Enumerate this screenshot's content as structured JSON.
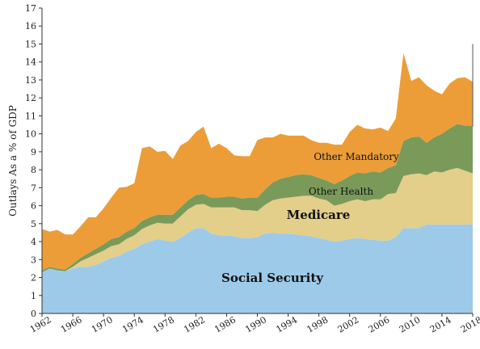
{
  "chart_data": {
    "type": "area",
    "stacked": true,
    "ylabel": "Outlays As a % of GDP",
    "xlabel": "",
    "xlim": [
      1962,
      2018
    ],
    "ylim": [
      0,
      17
    ],
    "x_ticks": [
      1962,
      1966,
      1970,
      1974,
      1978,
      1982,
      1986,
      1990,
      1994,
      1998,
      2002,
      2006,
      2010,
      2014,
      2018
    ],
    "y_ticks": [
      0,
      1,
      2,
      3,
      4,
      5,
      6,
      7,
      8,
      9,
      10,
      11,
      12,
      13,
      14,
      15,
      16,
      17
    ],
    "grid": false,
    "legend": "none",
    "x": [
      1962,
      1963,
      1964,
      1965,
      1966,
      1967,
      1968,
      1969,
      1970,
      1971,
      1972,
      1973,
      1974,
      1975,
      1976,
      1977,
      1978,
      1979,
      1980,
      1981,
      1982,
      1983,
      1984,
      1985,
      1986,
      1987,
      1988,
      1989,
      1990,
      1991,
      1992,
      1993,
      1994,
      1995,
      1996,
      1997,
      1998,
      1999,
      2000,
      2001,
      2002,
      2003,
      2004,
      2005,
      2006,
      2007,
      2008,
      2009,
      2010,
      2011,
      2012,
      2013,
      2014,
      2015,
      2016,
      2017,
      2018
    ],
    "series": [
      {
        "name": "Social Security",
        "color": "#9ecae9",
        "label_position": "inside-bottom",
        "values": [
          2.3,
          2.5,
          2.4,
          2.35,
          2.5,
          2.6,
          2.6,
          2.7,
          2.9,
          3.1,
          3.2,
          3.45,
          3.6,
          3.85,
          4.0,
          4.15,
          4.05,
          4.0,
          4.2,
          4.5,
          4.75,
          4.75,
          4.45,
          4.35,
          4.35,
          4.3,
          4.2,
          4.2,
          4.25,
          4.45,
          4.5,
          4.45,
          4.45,
          4.4,
          4.35,
          4.3,
          4.2,
          4.1,
          4.0,
          4.05,
          4.15,
          4.2,
          4.15,
          4.1,
          4.05,
          4.05,
          4.25,
          4.75,
          4.75,
          4.75,
          4.95,
          4.95,
          4.95,
          4.95,
          4.95,
          4.95,
          4.95
        ]
      },
      {
        "name": "Medicare",
        "color": "#e3cf8a",
        "label_position": "inside",
        "values": [
          0.0,
          0.0,
          0.0,
          0.0,
          0.1,
          0.3,
          0.5,
          0.6,
          0.6,
          0.65,
          0.65,
          0.7,
          0.75,
          0.85,
          0.9,
          0.9,
          0.95,
          1.0,
          1.2,
          1.3,
          1.3,
          1.35,
          1.45,
          1.55,
          1.55,
          1.6,
          1.55,
          1.55,
          1.45,
          1.6,
          1.8,
          1.95,
          2.0,
          2.1,
          2.2,
          2.25,
          2.2,
          2.2,
          2.0,
          2.05,
          2.1,
          2.15,
          2.1,
          2.25,
          2.3,
          2.6,
          2.45,
          2.9,
          3.0,
          3.05,
          2.75,
          2.95,
          2.9,
          3.05,
          3.15,
          3.0,
          2.85
        ]
      },
      {
        "name": "Other Health",
        "color": "#7a9a5a",
        "label_position": "inside",
        "values": [
          0.1,
          0.1,
          0.1,
          0.1,
          0.15,
          0.2,
          0.25,
          0.3,
          0.35,
          0.4,
          0.4,
          0.4,
          0.4,
          0.45,
          0.45,
          0.45,
          0.5,
          0.5,
          0.5,
          0.5,
          0.55,
          0.55,
          0.55,
          0.55,
          0.6,
          0.6,
          0.65,
          0.7,
          0.75,
          0.85,
          1.0,
          1.1,
          1.15,
          1.2,
          1.2,
          1.15,
          1.15,
          1.1,
          1.2,
          1.3,
          1.4,
          1.5,
          1.55,
          1.55,
          1.5,
          1.45,
          1.55,
          1.95,
          2.05,
          2.05,
          1.8,
          1.9,
          2.15,
          2.3,
          2.45,
          2.5,
          2.65
        ]
      },
      {
        "name": "Other Mandatory",
        "color": "#ec9d38",
        "label_position": "inside",
        "values": [
          2.3,
          1.95,
          2.15,
          1.95,
          1.65,
          1.75,
          2.0,
          1.75,
          2.0,
          2.3,
          2.75,
          2.5,
          2.5,
          4.05,
          3.95,
          3.5,
          3.55,
          3.1,
          3.45,
          3.3,
          3.5,
          3.75,
          2.75,
          3.0,
          2.7,
          2.3,
          2.35,
          2.3,
          3.2,
          2.9,
          2.5,
          2.5,
          2.3,
          2.2,
          2.15,
          1.95,
          1.95,
          2.1,
          2.2,
          2.0,
          2.45,
          2.65,
          2.5,
          2.35,
          2.5,
          2.05,
          2.6,
          4.9,
          3.15,
          3.3,
          3.2,
          2.6,
          2.2,
          2.5,
          2.55,
          2.7,
          2.45
        ]
      }
    ]
  }
}
